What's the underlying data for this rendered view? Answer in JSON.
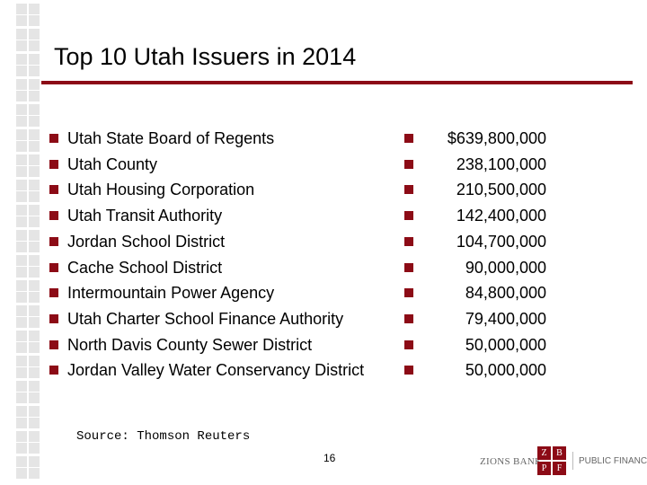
{
  "slide": {
    "title": "Top 10 Utah Issuers in 2014",
    "issuers": [
      "Utah State Board of Regents",
      "Utah County",
      "Utah Housing Corporation",
      "Utah Transit Authority",
      "Jordan School District",
      "Cache School District",
      "Intermountain Power Agency",
      "Utah Charter School Finance Authority",
      "North Davis County Sewer District",
      "Jordan Valley Water Conservancy District"
    ],
    "amounts": [
      "$639,800,000",
      "238,100,000",
      "210,500,000",
      "142,400,000",
      "104,700,000",
      "90,000,000",
      "84,800,000",
      "79,400,000",
      "50,000,000",
      "50,000,000"
    ],
    "source": "Source: Thomson Reuters",
    "page_number": "16"
  },
  "branding": {
    "bank_name": "ZIONS BANK",
    "logo_letters": [
      "Z",
      "B",
      "P",
      "F"
    ],
    "division": "PUBLIC FINANCE"
  },
  "colors": {
    "accent": "#8c0b16",
    "grid": "#e5e5e5"
  }
}
